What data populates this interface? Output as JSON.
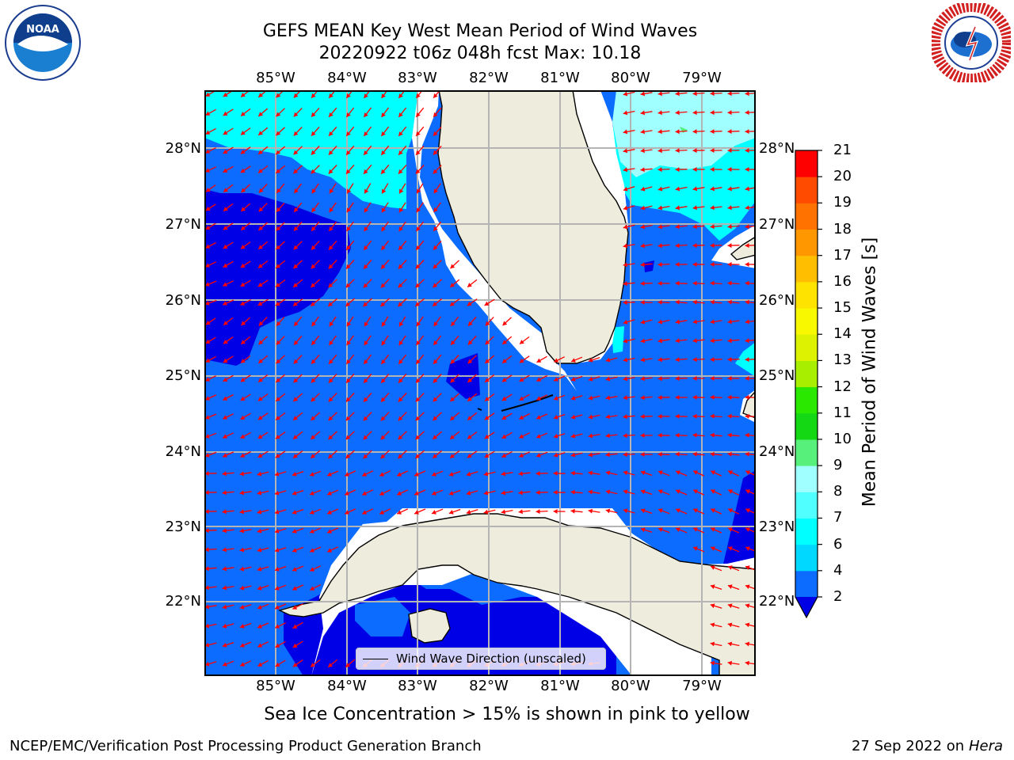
{
  "header": {
    "title_line1": "GEFS MEAN Key West Mean Period of Wind Waves",
    "title_line2": "20220922 t06z 048h fcst   Max: 10.18"
  },
  "logos": {
    "left": "NOAA",
    "left_ring_text": "NATIONAL OCEANIC AND ATMOSPHERIC ADMINISTRATION · U.S. DEPARTMENT OF COMMERCE",
    "right_ring_text": "NATIONAL WEATHER SERVICE"
  },
  "map": {
    "lon_labels": [
      "85°W",
      "84°W",
      "83°W",
      "82°W",
      "81°W",
      "80°W",
      "79°W"
    ],
    "lat_labels": [
      "28°N",
      "27°N",
      "26°N",
      "25°N",
      "24°N",
      "23°N",
      "22°N"
    ],
    "extent": {
      "lon_min": -86.0,
      "lon_max": -78.25,
      "lat_min": 21.0,
      "lat_max": 28.75
    },
    "gridlines": true,
    "land_color": "#eeecdc",
    "arrow_color": "#ff0000",
    "legend_text": "Wind Wave Direction (unscaled)",
    "legend_placement": "bottom-center"
  },
  "colorbar": {
    "title": "Mean Period of Wind Waves [s]",
    "ticks": [
      "2",
      "4",
      "6",
      "7",
      "8",
      "9",
      "10",
      "11",
      "12",
      "13",
      "14",
      "15",
      "16",
      "17",
      "18",
      "19",
      "20",
      "21"
    ],
    "colors": [
      "#0b6cff",
      "#00d8ff",
      "#00ffff",
      "#50ffff",
      "#a0ffff",
      "#56f07a",
      "#13d813",
      "#2ae800",
      "#a8ee00",
      "#dcf200",
      "#f8f800",
      "#ffe300",
      "#ffbe00",
      "#ff9800",
      "#ff7200",
      "#ff4b00",
      "#ff0000"
    ],
    "under_color": "#0000e6",
    "extend": "min"
  },
  "caption": "Sea Ice Concentration > 15% is shown in pink to yellow",
  "footer": {
    "left": "NCEP/EMC/Verification Post Processing Product Generation Branch",
    "date": "27 Sep 2022 on",
    "host": "Hera"
  }
}
